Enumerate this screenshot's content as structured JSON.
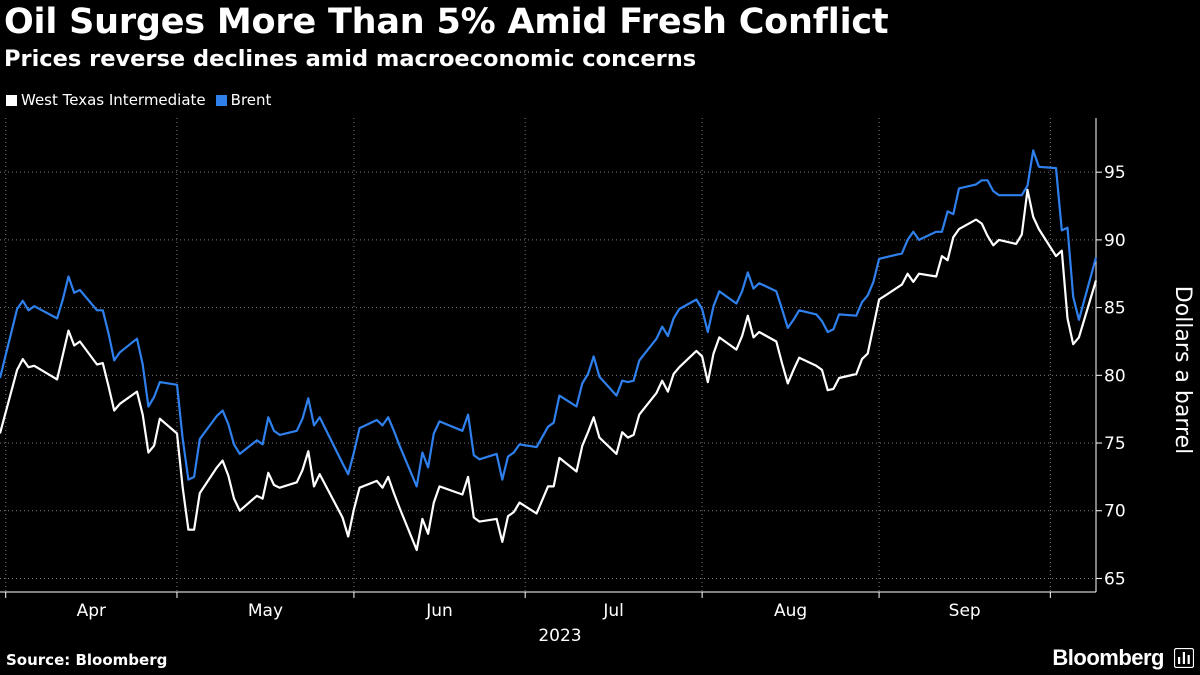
{
  "title": "Oil Surges More Than 5% Amid Fresh Conflict",
  "subtitle": "Prices reverse declines amid macroeconomic concerns",
  "source": "Source: Bloomberg",
  "brand": "Bloomberg",
  "brand_icon": "bloomberg-terminal-icon",
  "colors": {
    "background": "#000000",
    "wti": "#ffffff",
    "brent": "#2f80ed",
    "grid": "#7a7a7a",
    "axis": "#ffffff"
  },
  "chart_data": {
    "type": "line",
    "ylabel": "Dollars a barrel",
    "ylim": [
      64,
      99
    ],
    "yticks": [
      65,
      70,
      75,
      80,
      85,
      90,
      95
    ],
    "y_axis_side": "right",
    "x_year_label": "2023",
    "x_months": [
      "Apr",
      "May",
      "Jun",
      "Jul",
      "Aug",
      "Sep"
    ],
    "x_range": [
      "2023-03-31",
      "2023-10-09"
    ],
    "grid": "dotted vertical at month starts, horizontal at y ticks",
    "legend_position": "top-left",
    "series": [
      {
        "name": "West Texas Intermediate",
        "color": "#ffffff",
        "points": [
          [
            "2023-03-31",
            75.7
          ],
          [
            "2023-04-03",
            80.4
          ],
          [
            "2023-04-04",
            81.2
          ],
          [
            "2023-04-05",
            80.6
          ],
          [
            "2023-04-06",
            80.7
          ],
          [
            "2023-04-10",
            79.7
          ],
          [
            "2023-04-11",
            81.5
          ],
          [
            "2023-04-12",
            83.3
          ],
          [
            "2023-04-13",
            82.2
          ],
          [
            "2023-04-14",
            82.5
          ],
          [
            "2023-04-17",
            80.8
          ],
          [
            "2023-04-18",
            80.9
          ],
          [
            "2023-04-19",
            79.2
          ],
          [
            "2023-04-20",
            77.4
          ],
          [
            "2023-04-21",
            77.9
          ],
          [
            "2023-04-24",
            78.8
          ],
          [
            "2023-04-25",
            77.1
          ],
          [
            "2023-04-26",
            74.3
          ],
          [
            "2023-04-27",
            74.8
          ],
          [
            "2023-04-28",
            76.8
          ],
          [
            "2023-05-01",
            75.7
          ],
          [
            "2023-05-02",
            71.7
          ],
          [
            "2023-05-03",
            68.6
          ],
          [
            "2023-05-04",
            68.6
          ],
          [
            "2023-05-05",
            71.3
          ],
          [
            "2023-05-08",
            73.2
          ],
          [
            "2023-05-09",
            73.7
          ],
          [
            "2023-05-10",
            72.6
          ],
          [
            "2023-05-11",
            70.9
          ],
          [
            "2023-05-12",
            70.0
          ],
          [
            "2023-05-15",
            71.1
          ],
          [
            "2023-05-16",
            70.9
          ],
          [
            "2023-05-17",
            72.8
          ],
          [
            "2023-05-18",
            71.9
          ],
          [
            "2023-05-19",
            71.7
          ],
          [
            "2023-05-22",
            72.1
          ],
          [
            "2023-05-23",
            73.0
          ],
          [
            "2023-05-24",
            74.4
          ],
          [
            "2023-05-25",
            71.8
          ],
          [
            "2023-05-26",
            72.7
          ],
          [
            "2023-05-30",
            69.5
          ],
          [
            "2023-05-31",
            68.1
          ],
          [
            "2023-06-01",
            70.1
          ],
          [
            "2023-06-02",
            71.7
          ],
          [
            "2023-06-05",
            72.2
          ],
          [
            "2023-06-06",
            71.7
          ],
          [
            "2023-06-07",
            72.5
          ],
          [
            "2023-06-08",
            71.3
          ],
          [
            "2023-06-09",
            70.2
          ],
          [
            "2023-06-12",
            67.1
          ],
          [
            "2023-06-13",
            69.4
          ],
          [
            "2023-06-14",
            68.3
          ],
          [
            "2023-06-15",
            70.6
          ],
          [
            "2023-06-16",
            71.8
          ],
          [
            "2023-06-20",
            71.2
          ],
          [
            "2023-06-21",
            72.5
          ],
          [
            "2023-06-22",
            69.5
          ],
          [
            "2023-06-23",
            69.2
          ],
          [
            "2023-06-26",
            69.4
          ],
          [
            "2023-06-27",
            67.7
          ],
          [
            "2023-06-28",
            69.6
          ],
          [
            "2023-06-29",
            69.9
          ],
          [
            "2023-06-30",
            70.6
          ],
          [
            "2023-07-03",
            69.8
          ],
          [
            "2023-07-05",
            71.8
          ],
          [
            "2023-07-06",
            71.8
          ],
          [
            "2023-07-07",
            73.9
          ],
          [
            "2023-07-10",
            72.9
          ],
          [
            "2023-07-11",
            74.8
          ],
          [
            "2023-07-12",
            75.8
          ],
          [
            "2023-07-13",
            76.9
          ],
          [
            "2023-07-14",
            75.4
          ],
          [
            "2023-07-17",
            74.2
          ],
          [
            "2023-07-18",
            75.8
          ],
          [
            "2023-07-19",
            75.4
          ],
          [
            "2023-07-20",
            75.6
          ],
          [
            "2023-07-21",
            77.1
          ],
          [
            "2023-07-24",
            78.7
          ],
          [
            "2023-07-25",
            79.6
          ],
          [
            "2023-07-26",
            78.8
          ],
          [
            "2023-07-27",
            80.1
          ],
          [
            "2023-07-28",
            80.6
          ],
          [
            "2023-07-31",
            81.8
          ],
          [
            "2023-08-01",
            81.4
          ],
          [
            "2023-08-02",
            79.5
          ],
          [
            "2023-08-03",
            81.6
          ],
          [
            "2023-08-04",
            82.8
          ],
          [
            "2023-08-07",
            81.9
          ],
          [
            "2023-08-08",
            82.9
          ],
          [
            "2023-08-09",
            84.4
          ],
          [
            "2023-08-10",
            82.8
          ],
          [
            "2023-08-11",
            83.2
          ],
          [
            "2023-08-14",
            82.5
          ],
          [
            "2023-08-15",
            80.9
          ],
          [
            "2023-08-16",
            79.4
          ],
          [
            "2023-08-17",
            80.4
          ],
          [
            "2023-08-18",
            81.3
          ],
          [
            "2023-08-21",
            80.7
          ],
          [
            "2023-08-22",
            80.4
          ],
          [
            "2023-08-23",
            78.9
          ],
          [
            "2023-08-24",
            79.0
          ],
          [
            "2023-08-25",
            79.8
          ],
          [
            "2023-08-28",
            80.1
          ],
          [
            "2023-08-29",
            81.2
          ],
          [
            "2023-08-30",
            81.6
          ],
          [
            "2023-08-31",
            83.6
          ],
          [
            "2023-09-01",
            85.6
          ],
          [
            "2023-09-05",
            86.7
          ],
          [
            "2023-09-06",
            87.5
          ],
          [
            "2023-09-07",
            86.9
          ],
          [
            "2023-09-08",
            87.5
          ],
          [
            "2023-09-11",
            87.3
          ],
          [
            "2023-09-12",
            88.8
          ],
          [
            "2023-09-13",
            88.5
          ],
          [
            "2023-09-14",
            90.2
          ],
          [
            "2023-09-15",
            90.8
          ],
          [
            "2023-09-18",
            91.5
          ],
          [
            "2023-09-19",
            91.2
          ],
          [
            "2023-09-20",
            90.3
          ],
          [
            "2023-09-21",
            89.6
          ],
          [
            "2023-09-22",
            90.0
          ],
          [
            "2023-09-25",
            89.7
          ],
          [
            "2023-09-26",
            90.4
          ],
          [
            "2023-09-27",
            93.7
          ],
          [
            "2023-09-28",
            91.7
          ],
          [
            "2023-09-29",
            90.8
          ],
          [
            "2023-10-02",
            88.8
          ],
          [
            "2023-10-03",
            89.2
          ],
          [
            "2023-10-04",
            84.2
          ],
          [
            "2023-10-05",
            82.3
          ],
          [
            "2023-10-06",
            82.8
          ],
          [
            "2023-10-09",
            87.0
          ]
        ]
      },
      {
        "name": "Brent",
        "color": "#2f80ed",
        "points": [
          [
            "2023-03-31",
            79.8
          ],
          [
            "2023-04-03",
            84.9
          ],
          [
            "2023-04-04",
            85.5
          ],
          [
            "2023-04-05",
            84.8
          ],
          [
            "2023-04-06",
            85.1
          ],
          [
            "2023-04-10",
            84.2
          ],
          [
            "2023-04-11",
            85.6
          ],
          [
            "2023-04-12",
            87.3
          ],
          [
            "2023-04-13",
            86.1
          ],
          [
            "2023-04-14",
            86.3
          ],
          [
            "2023-04-17",
            84.8
          ],
          [
            "2023-04-18",
            84.8
          ],
          [
            "2023-04-19",
            83.1
          ],
          [
            "2023-04-20",
            81.1
          ],
          [
            "2023-04-21",
            81.7
          ],
          [
            "2023-04-24",
            82.7
          ],
          [
            "2023-04-25",
            80.8
          ],
          [
            "2023-04-26",
            77.7
          ],
          [
            "2023-04-27",
            78.4
          ],
          [
            "2023-04-28",
            79.5
          ],
          [
            "2023-05-01",
            79.3
          ],
          [
            "2023-05-02",
            75.3
          ],
          [
            "2023-05-03",
            72.3
          ],
          [
            "2023-05-04",
            72.5
          ],
          [
            "2023-05-05",
            75.3
          ],
          [
            "2023-05-08",
            77.0
          ],
          [
            "2023-05-09",
            77.4
          ],
          [
            "2023-05-10",
            76.4
          ],
          [
            "2023-05-11",
            74.9
          ],
          [
            "2023-05-12",
            74.2
          ],
          [
            "2023-05-15",
            75.2
          ],
          [
            "2023-05-16",
            74.9
          ],
          [
            "2023-05-17",
            76.9
          ],
          [
            "2023-05-18",
            75.9
          ],
          [
            "2023-05-19",
            75.6
          ],
          [
            "2023-05-22",
            75.9
          ],
          [
            "2023-05-23",
            76.8
          ],
          [
            "2023-05-24",
            78.3
          ],
          [
            "2023-05-25",
            76.3
          ],
          [
            "2023-05-26",
            76.9
          ],
          [
            "2023-05-30",
            73.5
          ],
          [
            "2023-05-31",
            72.7
          ],
          [
            "2023-06-01",
            74.3
          ],
          [
            "2023-06-02",
            76.1
          ],
          [
            "2023-06-05",
            76.7
          ],
          [
            "2023-06-06",
            76.3
          ],
          [
            "2023-06-07",
            76.9
          ],
          [
            "2023-06-08",
            75.9
          ],
          [
            "2023-06-09",
            74.8
          ],
          [
            "2023-06-12",
            71.8
          ],
          [
            "2023-06-13",
            74.3
          ],
          [
            "2023-06-14",
            73.2
          ],
          [
            "2023-06-15",
            75.7
          ],
          [
            "2023-06-16",
            76.6
          ],
          [
            "2023-06-20",
            75.9
          ],
          [
            "2023-06-21",
            77.1
          ],
          [
            "2023-06-22",
            74.1
          ],
          [
            "2023-06-23",
            73.8
          ],
          [
            "2023-06-26",
            74.2
          ],
          [
            "2023-06-27",
            72.3
          ],
          [
            "2023-06-28",
            74.0
          ],
          [
            "2023-06-29",
            74.3
          ],
          [
            "2023-06-30",
            74.9
          ],
          [
            "2023-07-03",
            74.7
          ],
          [
            "2023-07-05",
            76.2
          ],
          [
            "2023-07-06",
            76.5
          ],
          [
            "2023-07-07",
            78.5
          ],
          [
            "2023-07-10",
            77.7
          ],
          [
            "2023-07-11",
            79.4
          ],
          [
            "2023-07-12",
            80.1
          ],
          [
            "2023-07-13",
            81.4
          ],
          [
            "2023-07-14",
            79.9
          ],
          [
            "2023-07-17",
            78.5
          ],
          [
            "2023-07-18",
            79.6
          ],
          [
            "2023-07-19",
            79.5
          ],
          [
            "2023-07-20",
            79.6
          ],
          [
            "2023-07-21",
            81.1
          ],
          [
            "2023-07-24",
            82.7
          ],
          [
            "2023-07-25",
            83.6
          ],
          [
            "2023-07-26",
            82.9
          ],
          [
            "2023-07-27",
            84.2
          ],
          [
            "2023-07-28",
            84.9
          ],
          [
            "2023-07-31",
            85.6
          ],
          [
            "2023-08-01",
            84.9
          ],
          [
            "2023-08-02",
            83.2
          ],
          [
            "2023-08-03",
            85.1
          ],
          [
            "2023-08-04",
            86.2
          ],
          [
            "2023-08-07",
            85.3
          ],
          [
            "2023-08-08",
            86.2
          ],
          [
            "2023-08-09",
            87.6
          ],
          [
            "2023-08-10",
            86.4
          ],
          [
            "2023-08-11",
            86.8
          ],
          [
            "2023-08-14",
            86.2
          ],
          [
            "2023-08-15",
            84.9
          ],
          [
            "2023-08-16",
            83.5
          ],
          [
            "2023-08-17",
            84.1
          ],
          [
            "2023-08-18",
            84.8
          ],
          [
            "2023-08-21",
            84.5
          ],
          [
            "2023-08-22",
            84.0
          ],
          [
            "2023-08-23",
            83.2
          ],
          [
            "2023-08-24",
            83.4
          ],
          [
            "2023-08-25",
            84.5
          ],
          [
            "2023-08-28",
            84.4
          ],
          [
            "2023-08-29",
            85.4
          ],
          [
            "2023-08-30",
            85.9
          ],
          [
            "2023-08-31",
            86.9
          ],
          [
            "2023-09-01",
            88.6
          ],
          [
            "2023-09-05",
            89.0
          ],
          [
            "2023-09-06",
            90.0
          ],
          [
            "2023-09-07",
            90.6
          ],
          [
            "2023-09-08",
            90.0
          ],
          [
            "2023-09-11",
            90.6
          ],
          [
            "2023-09-12",
            90.6
          ],
          [
            "2023-09-13",
            92.1
          ],
          [
            "2023-09-14",
            91.9
          ],
          [
            "2023-09-15",
            93.8
          ],
          [
            "2023-09-18",
            94.1
          ],
          [
            "2023-09-19",
            94.4
          ],
          [
            "2023-09-20",
            94.4
          ],
          [
            "2023-09-21",
            93.6
          ],
          [
            "2023-09-22",
            93.3
          ],
          [
            "2023-09-25",
            93.3
          ],
          [
            "2023-09-26",
            93.3
          ],
          [
            "2023-09-27",
            94.0
          ],
          [
            "2023-09-28",
            96.6
          ],
          [
            "2023-09-29",
            95.4
          ],
          [
            "2023-10-02",
            95.3
          ],
          [
            "2023-10-03",
            90.7
          ],
          [
            "2023-10-04",
            90.9
          ],
          [
            "2023-10-05",
            85.8
          ],
          [
            "2023-10-06",
            84.1
          ],
          [
            "2023-10-09",
            88.7
          ]
        ]
      }
    ]
  }
}
